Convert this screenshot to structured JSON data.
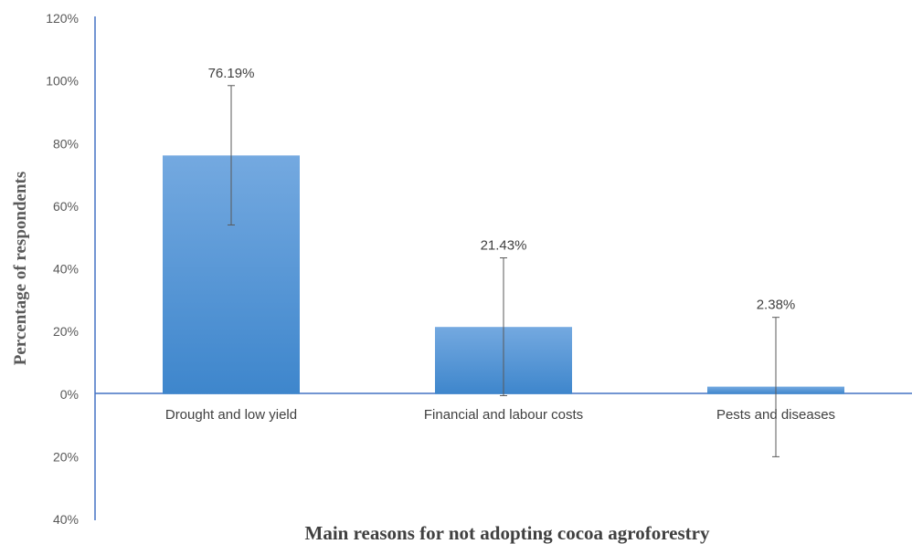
{
  "chart_data": {
    "type": "bar",
    "categories": [
      "Drought and low yield",
      "Financial and labour costs",
      "Pests and diseases"
    ],
    "values": [
      76.19,
      21.43,
      2.38
    ],
    "value_labels": [
      "76.19%",
      "21.43%",
      "2.38%"
    ],
    "error_bars": [
      {
        "low": 54,
        "high": 98.5
      },
      {
        "low": -0.5,
        "high": 43.5
      },
      {
        "low": -20,
        "high": 24.5
      }
    ],
    "yticks": [
      -40,
      -20,
      0,
      20,
      40,
      60,
      80,
      100,
      120
    ],
    "ytick_labels": [
      "40%",
      "20%",
      "0%",
      "20%",
      "40%",
      "60%",
      "80%",
      "100%",
      "120%"
    ],
    "ylim": [
      -40,
      120
    ],
    "title": "",
    "xlabel": "Main reasons for not adopting cocoa agroforestry",
    "ylabel": "Percentage of respondents",
    "grid": false,
    "legend": "none",
    "colors": {
      "bar_top": "#74a9e0",
      "bar_bottom": "#3e86cc",
      "axis": "#4472c4",
      "error_bar": "#595959"
    }
  }
}
